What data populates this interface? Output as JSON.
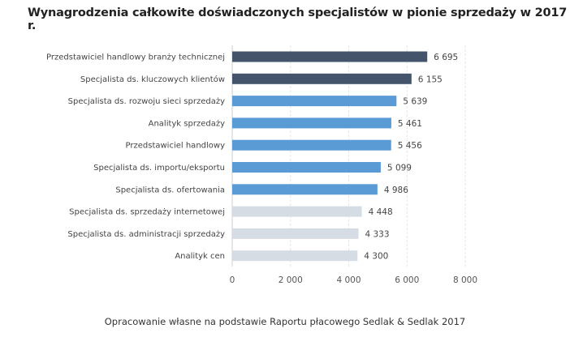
{
  "chart_data": {
    "type": "bar",
    "orientation": "horizontal",
    "title": "Wynagrodzenia całkowite doświadczonych specjalistów w pionie sprzedaży w 2017 r.",
    "footer": "Opracowanie własne na podstawie Raportu płacowego Sedlak & Sedlak 2017",
    "categories": [
      "Przedstawiciel handlowy branży technicznej",
      "Specjalista ds. kluczowych klientów",
      "Specjalista ds. rozwoju sieci sprzedaży",
      "Analityk sprzedaży",
      "Przedstawiciel handlowy",
      "Specjalista ds. importu/eksportu",
      "Specjalista ds. ofertowania",
      "Specjalista ds. sprzedaży internetowej",
      "Specjalista ds. administracji sprzedaży",
      "Analityk cen"
    ],
    "values": [
      6695,
      6155,
      5639,
      5461,
      5456,
      5099,
      4986,
      4448,
      4333,
      4300
    ],
    "value_labels": [
      "6 695",
      "6 155",
      "5 639",
      "5 461",
      "5 456",
      "5 099",
      "4 986",
      "4 448",
      "4 333",
      "4 300"
    ],
    "bar_colors": [
      "#44546a",
      "#44546a",
      "#5b9bd5",
      "#5b9bd5",
      "#5b9bd5",
      "#5b9bd5",
      "#5b9bd5",
      "#d6dce4",
      "#d6dce4",
      "#d6dce4"
    ],
    "xlim": [
      0,
      8000
    ],
    "xticks": [
      0,
      2000,
      4000,
      6000,
      8000
    ],
    "xtick_labels": [
      "0",
      "2 000",
      "4 000",
      "6 000",
      "8 000"
    ],
    "grid": true,
    "legend": "none"
  }
}
